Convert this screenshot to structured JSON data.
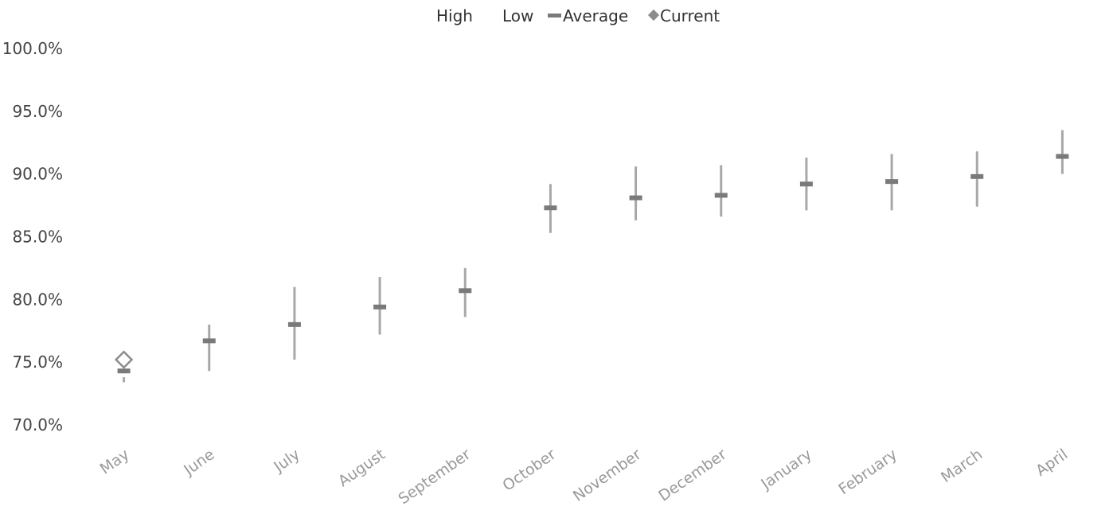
{
  "chart_data": {
    "type": "stock",
    "title": "",
    "xlabel": "",
    "ylabel": "",
    "ylim": [
      70,
      100
    ],
    "y_ticks": [
      "70.0%",
      "75.0%",
      "80.0%",
      "85.0%",
      "90.0%",
      "95.0%",
      "100.0%"
    ],
    "y_tick_values": [
      70,
      75,
      80,
      85,
      90,
      95,
      100
    ],
    "grid": false,
    "legend_position": "top-center",
    "categories": [
      "May",
      "June",
      "July",
      "August",
      "September",
      "October",
      "November",
      "December",
      "January",
      "February",
      "March",
      "April"
    ],
    "series": [
      {
        "name": "High",
        "values": [
          73.8,
          78.0,
          81.0,
          81.8,
          82.5,
          89.2,
          90.6,
          90.7,
          91.3,
          91.6,
          91.8,
          93.5
        ]
      },
      {
        "name": "Low",
        "values": [
          73.4,
          74.3,
          75.2,
          77.2,
          78.6,
          85.3,
          86.3,
          86.6,
          87.1,
          87.1,
          87.4,
          90.0
        ]
      },
      {
        "name": "Average",
        "values": [
          74.3,
          76.7,
          78.0,
          79.4,
          80.7,
          87.3,
          88.1,
          88.3,
          89.2,
          89.4,
          89.8,
          91.4
        ]
      },
      {
        "name": "Current",
        "values": [
          75.2,
          null,
          null,
          null,
          null,
          null,
          null,
          null,
          null,
          null,
          null,
          null
        ]
      }
    ],
    "colors": {
      "range_line": "#a8a8a8",
      "average_marker": "#7a7a7a",
      "current_marker": "#8c8c8c",
      "axis_text": "#444444",
      "category_text": "#9a9a9a"
    },
    "legend": {
      "high_label": "High",
      "low_label": "Low",
      "average_label": "Average",
      "current_label": "Current"
    }
  }
}
